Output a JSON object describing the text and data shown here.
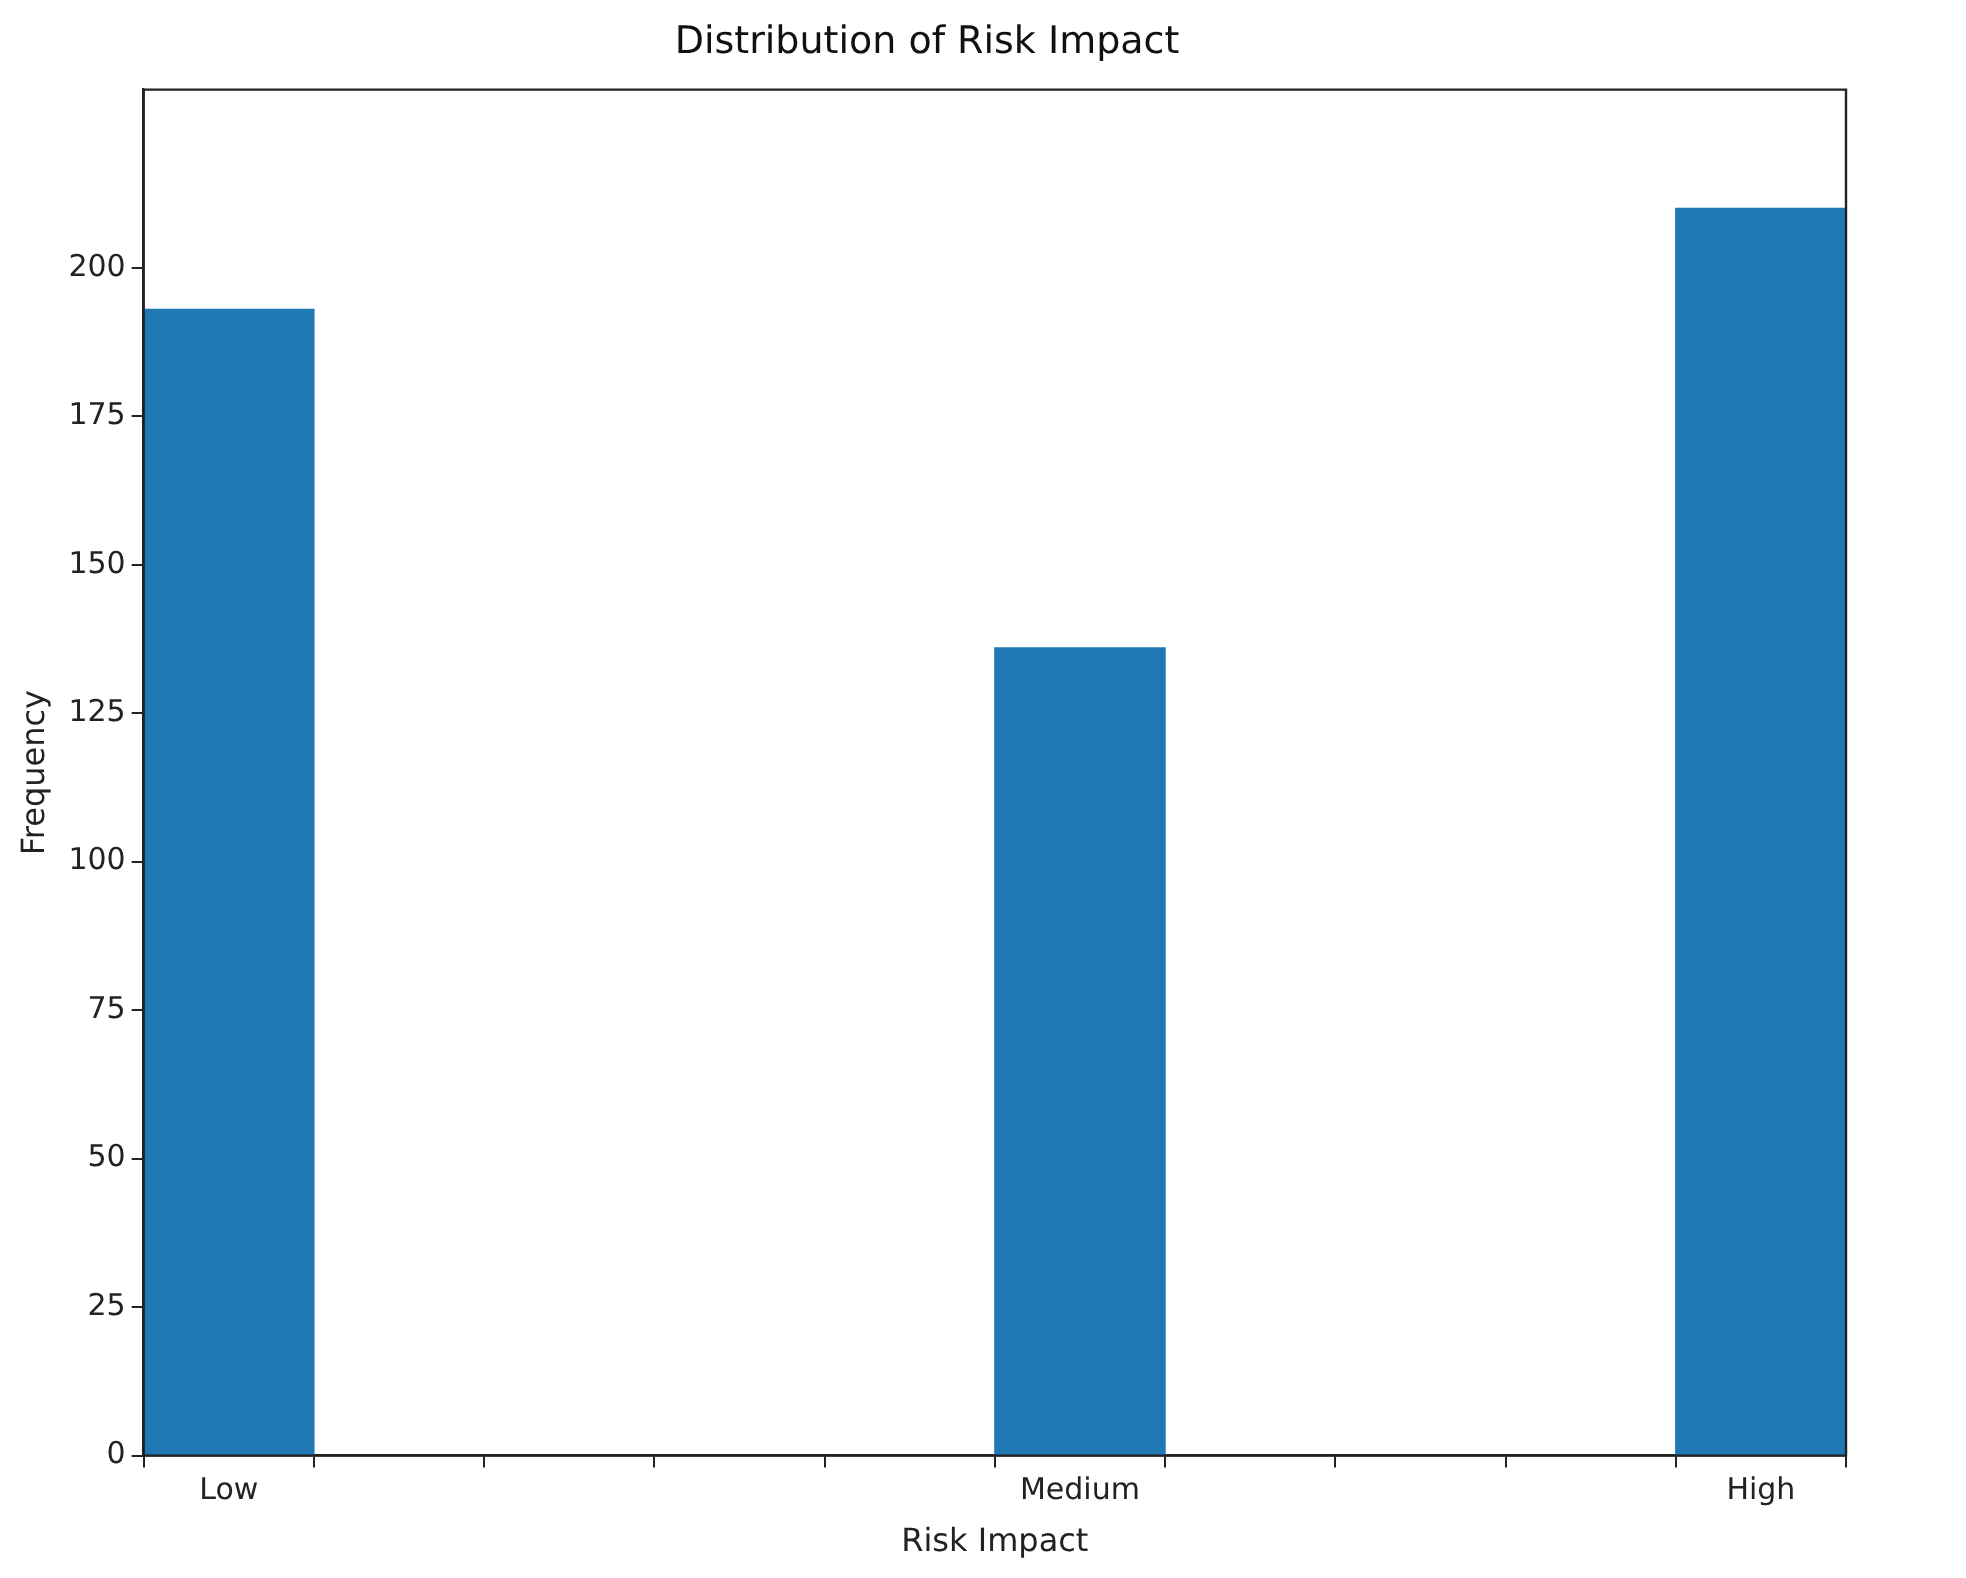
{
  "chart_data": {
    "type": "bar",
    "title": "Distribution of Risk Impact",
    "xlabel": "Risk Impact",
    "ylabel": "Frequency",
    "categories": [
      "Low",
      null,
      null,
      null,
      null,
      "Medium",
      null,
      null,
      null,
      "High"
    ],
    "values": [
      193,
      0,
      0,
      0,
      0,
      136,
      0,
      0,
      0,
      210
    ],
    "color": "#1f77b4",
    "ylim": [
      0,
      230
    ],
    "yticks": [
      0,
      25,
      50,
      75,
      100,
      125,
      150,
      175,
      200
    ],
    "grid": false,
    "legend": false
  }
}
